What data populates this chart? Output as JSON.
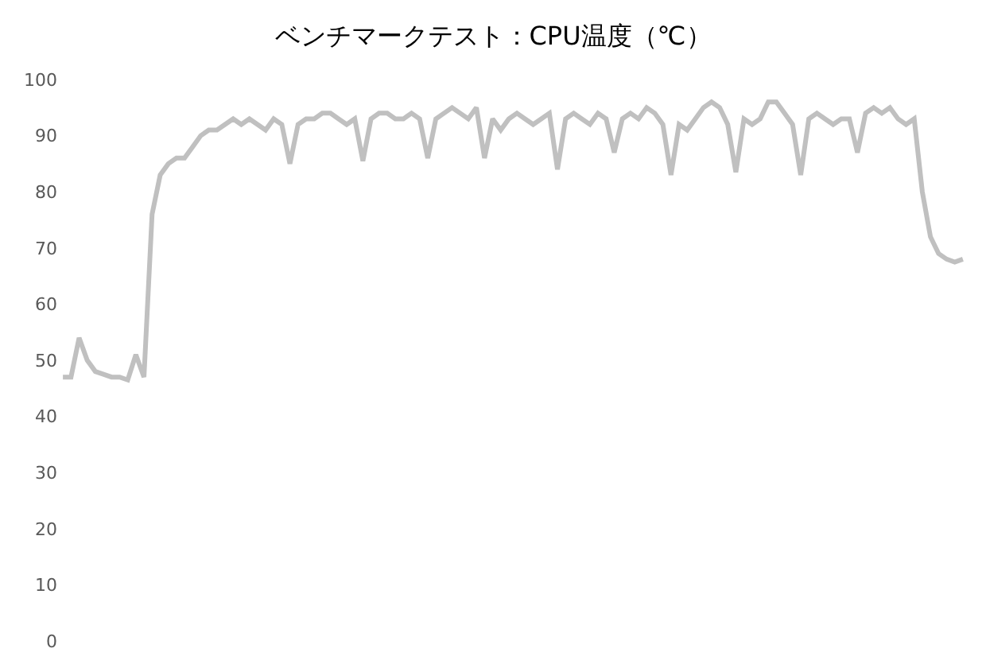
{
  "chart_data": {
    "type": "line",
    "title": "ベンチマークテスト：CPU温度（℃）",
    "categories": [
      null,
      null,
      null,
      null,
      null,
      null,
      null,
      null,
      null,
      null,
      null,
      null,
      null,
      null,
      null,
      null,
      null,
      null,
      null,
      null,
      null,
      null,
      null,
      null,
      null,
      null,
      null,
      null,
      null,
      null,
      null,
      null,
      null,
      null,
      null,
      null,
      null,
      null,
      null,
      null,
      null,
      null,
      null,
      null,
      null,
      null,
      null,
      null,
      null,
      null,
      null,
      null,
      null,
      null,
      null,
      null,
      null,
      null,
      null,
      null,
      null,
      null,
      null,
      null,
      null,
      null,
      null,
      null,
      null,
      null,
      null,
      null,
      null,
      null,
      null,
      null,
      null,
      null,
      null,
      null,
      null,
      null,
      null,
      null,
      null,
      null,
      null,
      null,
      null,
      null,
      null,
      null,
      null,
      null,
      null,
      null,
      null,
      null,
      null,
      null,
      null,
      null,
      null,
      null,
      null,
      null,
      null,
      null,
      null,
      null,
      null,
      null
    ],
    "series": [
      {
        "color": "#c0c0c0",
        "values": [
          47,
          47,
          54,
          50,
          48,
          47.5,
          47,
          47,
          46.5,
          51,
          47,
          76,
          83,
          85,
          86,
          86,
          88,
          90,
          91,
          91,
          92,
          93,
          92,
          93,
          92,
          91,
          93,
          92,
          85,
          92,
          93,
          93,
          94,
          94,
          93,
          92,
          93,
          85.5,
          93,
          94,
          94,
          93,
          93,
          94,
          93,
          86,
          93,
          94,
          95,
          94,
          93,
          95,
          86,
          93,
          91,
          93,
          94,
          93,
          92,
          93,
          94,
          84,
          93,
          94,
          93,
          92,
          94,
          93,
          87,
          93,
          94,
          93,
          95,
          94,
          92,
          83,
          92,
          91,
          93,
          95,
          96,
          95,
          92,
          83.5,
          93,
          92,
          93,
          96,
          96,
          94,
          92,
          83,
          93,
          94,
          93,
          92,
          93,
          93,
          87,
          94,
          95,
          94,
          95,
          93,
          92,
          93,
          80,
          72,
          69,
          68,
          67.5,
          68
        ]
      }
    ],
    "ylim": [
      0,
      100
    ],
    "yticks": [
      0,
      10,
      20,
      30,
      40,
      50,
      60,
      70,
      80,
      90,
      100
    ],
    "grid": false,
    "legend": false,
    "marker": "none",
    "line_style": "solid"
  }
}
